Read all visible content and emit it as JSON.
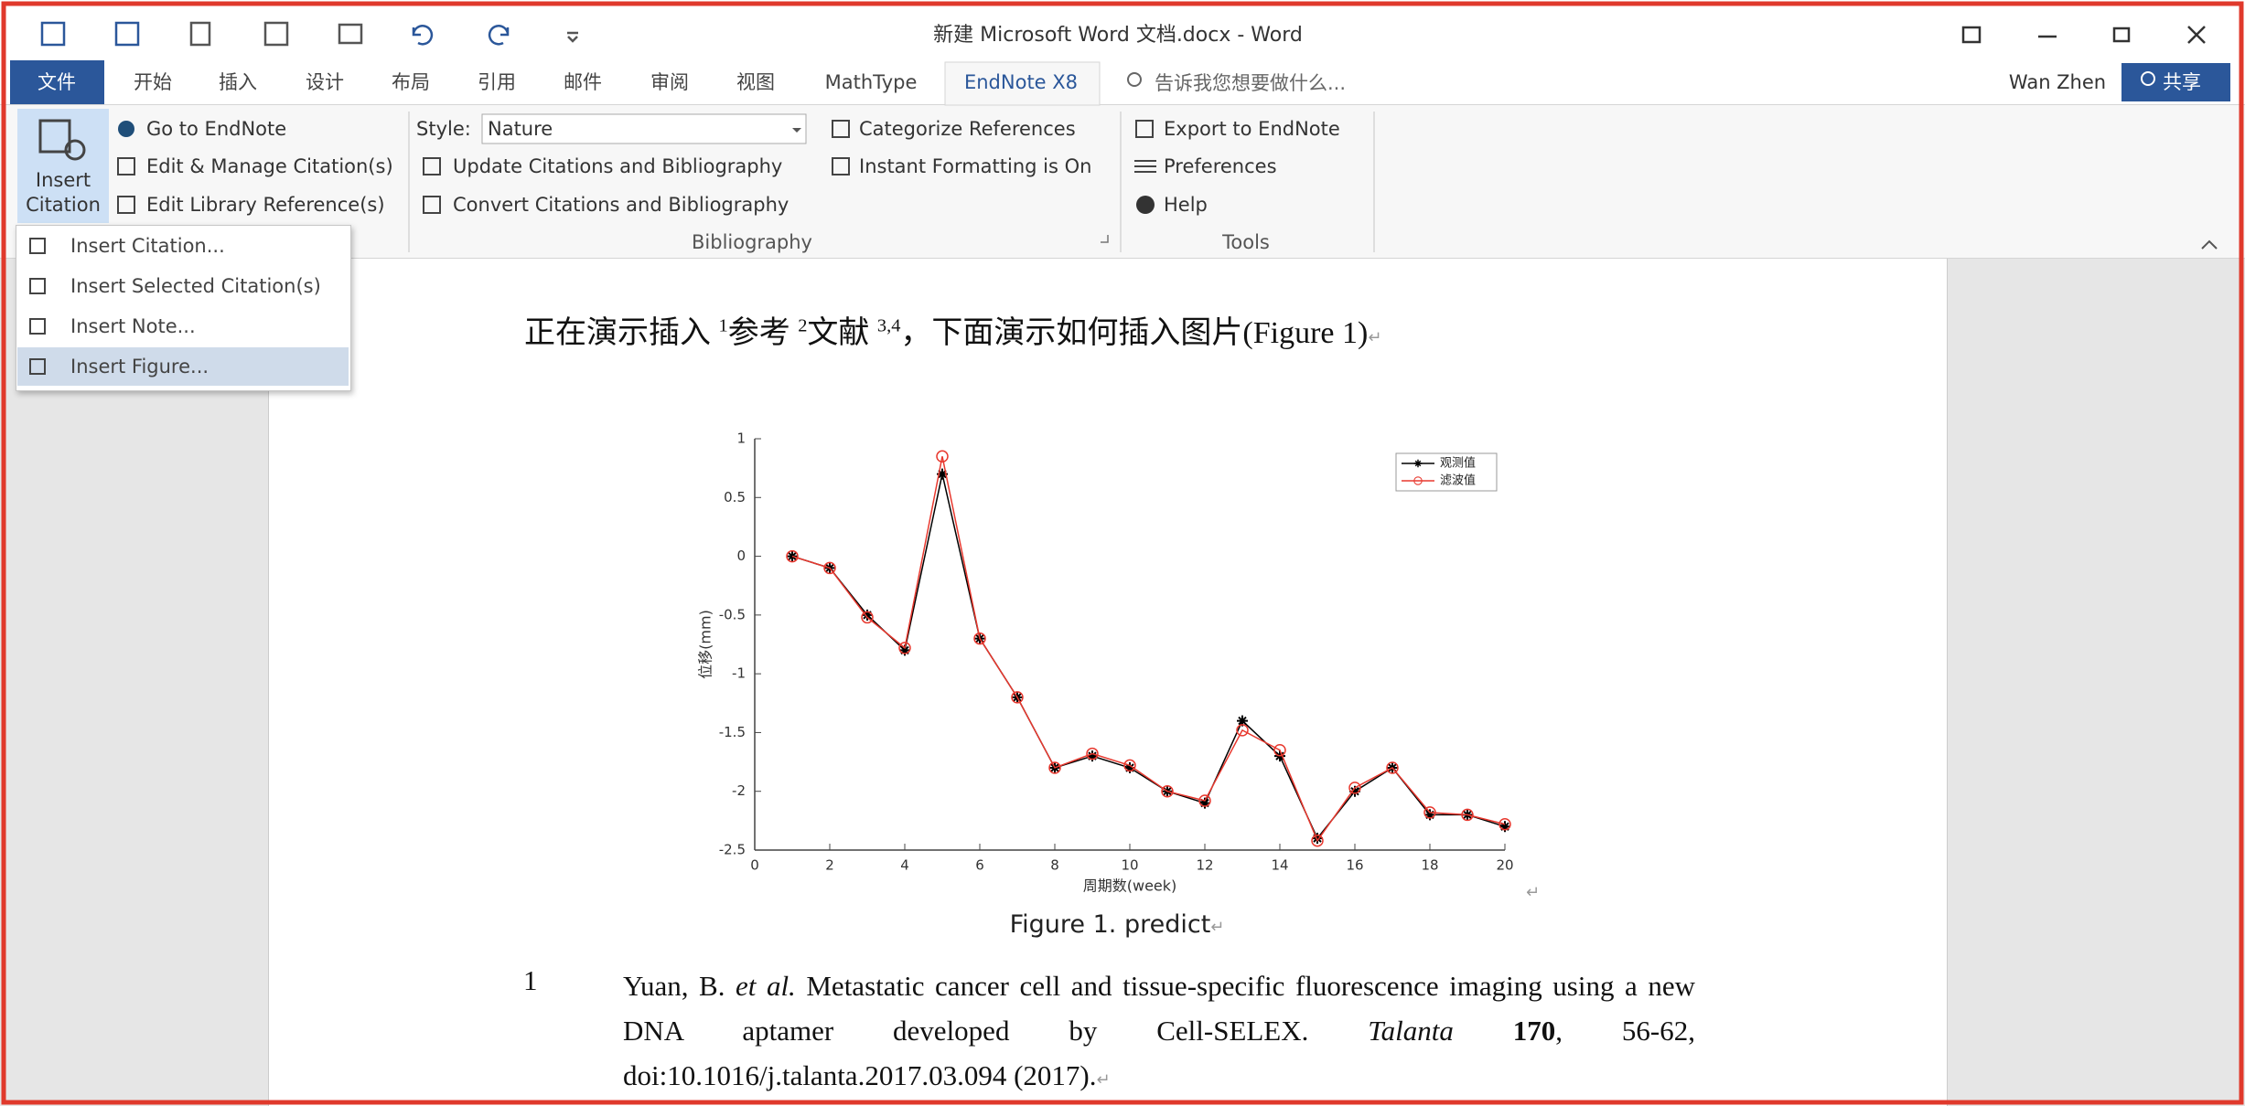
{
  "window": {
    "title": "新建 Microsoft Word 文档.docx - Word",
    "user": "Wan Zhen",
    "share": "共享"
  },
  "tabs": {
    "file": "文件",
    "items": [
      "开始",
      "插入",
      "设计",
      "布局",
      "引用",
      "邮件",
      "审阅",
      "视图",
      "MathType",
      "EndNote X8"
    ],
    "active": 9,
    "tell_me": "告诉我您想要做什么..."
  },
  "ribbon": {
    "insert_citation": "Insert Citation",
    "citations": [
      "Go to EndNote",
      "Edit & Manage Citation(s)",
      "Edit Library Reference(s)"
    ],
    "style_label": "Style:",
    "style_value": "Nature",
    "bibliography": [
      "Update Citations and Bibliography",
      "Convert Citations and Bibliography"
    ],
    "bibliography_group": "Bibliography",
    "formatting": [
      "Categorize References",
      "Instant Formatting is On"
    ],
    "tools": [
      "Export to EndNote",
      "Preferences",
      "Help"
    ],
    "tools_group": "Tools"
  },
  "menu": {
    "items": [
      "Insert Citation...",
      "Insert Selected Citation(s)",
      "Insert Note...",
      "Insert Figure..."
    ],
    "highlighted": 3
  },
  "document": {
    "paragraph": [
      "正在演示插入 ",
      "1",
      "参考 ",
      "2",
      "文献 ",
      "3,4",
      "，下面演示如何插入图片(Figure 1)"
    ],
    "return_mark": "↵",
    "caption": "Figure 1. predict",
    "reference": {
      "number": "1",
      "runs": [
        "Yuan, B. ",
        "et al.",
        " Metastatic cancer cell and tissue-specific fluorescence imaging using a new DNA aptamer developed by Cell-SELEX. ",
        "Talanta",
        "170",
        ", 56-62, doi:10.1016/j.talanta.2017.03.094 (2017)."
      ]
    }
  },
  "chart_data": {
    "type": "line",
    "x_label": "周期数(week)",
    "y_label": "位移(mm)",
    "x": [
      1,
      2,
      3,
      4,
      5,
      6,
      7,
      8,
      9,
      10,
      11,
      12,
      13,
      14,
      15,
      16,
      17,
      18,
      19,
      20
    ],
    "series": [
      {
        "name": "观测值",
        "color": "#000000",
        "marker": "star",
        "values": [
          0,
          -0.1,
          -0.5,
          -0.8,
          0.7,
          -0.7,
          -1.2,
          -1.8,
          -1.7,
          -1.8,
          -2.0,
          -2.1,
          -1.4,
          -1.7,
          -2.4,
          -2.0,
          -1.8,
          -2.2,
          -2.2,
          -2.3
        ]
      },
      {
        "name": "滤波值",
        "color": "#e8382e",
        "marker": "circle",
        "values": [
          0,
          -0.1,
          -0.52,
          -0.78,
          0.85,
          -0.7,
          -1.2,
          -1.8,
          -1.68,
          -1.78,
          -2.0,
          -2.08,
          -1.48,
          -1.65,
          -2.42,
          -1.97,
          -1.8,
          -2.18,
          -2.2,
          -2.28
        ]
      }
    ],
    "xlim": [
      0,
      20
    ],
    "xticks": [
      0,
      2,
      4,
      6,
      8,
      10,
      12,
      14,
      16,
      18,
      20
    ],
    "ylim": [
      -2.5,
      1
    ],
    "yticks": [
      -2.5,
      -2,
      -1.5,
      -1,
      -0.5,
      0,
      0.5,
      1
    ],
    "grid": false,
    "legend": "upper right"
  }
}
